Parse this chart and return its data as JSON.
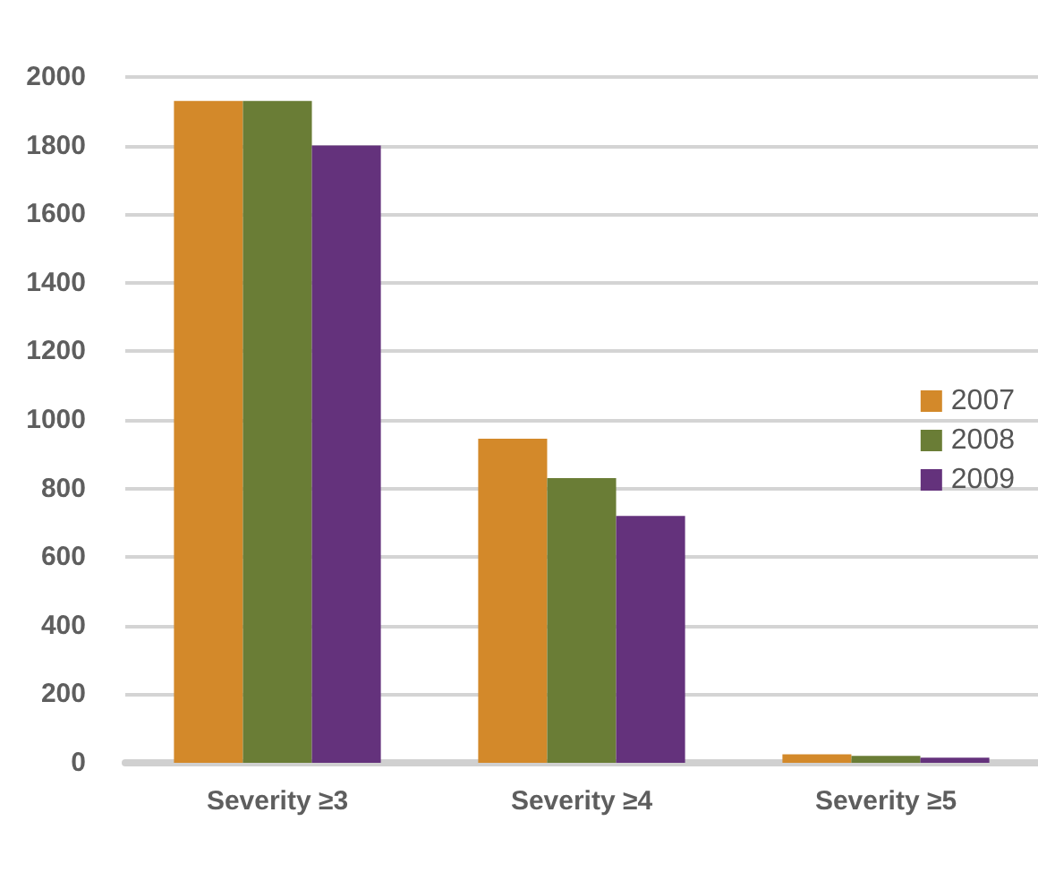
{
  "chart_data": {
    "type": "bar",
    "categories": [
      "Severity ≥3",
      "Severity ≥4",
      "Severity ≥5"
    ],
    "series": [
      {
        "name": "2007",
        "color": "#d3892a",
        "values": [
          1930,
          945,
          25
        ]
      },
      {
        "name": "2008",
        "color": "#6a7d36",
        "values": [
          1930,
          830,
          20
        ]
      },
      {
        "name": "2009",
        "color": "#64327c",
        "values": [
          1800,
          720,
          15
        ]
      }
    ],
    "ylim": [
      0,
      2000
    ],
    "yticks": [
      0,
      200,
      400,
      600,
      800,
      1000,
      1200,
      1400,
      1600,
      1800,
      2000
    ],
    "grid": "y",
    "legend": "right"
  }
}
